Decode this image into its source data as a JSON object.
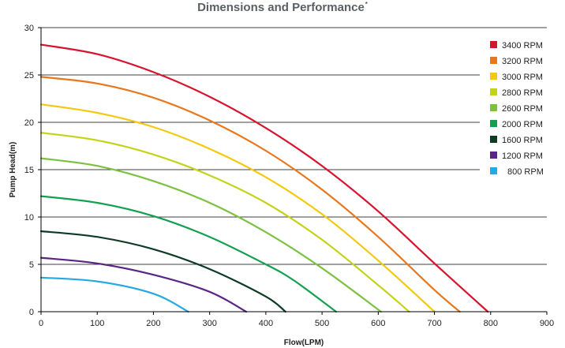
{
  "chart_data": {
    "type": "line",
    "title": "Dimensions and Performance",
    "title_mark": "*",
    "xlabel": "Flow(LPM)",
    "ylabel": "Pump Head(m)",
    "xlim": [
      0,
      900
    ],
    "ylim": [
      0,
      30
    ],
    "x_ticks": [
      0,
      100,
      200,
      300,
      400,
      500,
      600,
      700,
      800,
      900
    ],
    "y_ticks": [
      0,
      5,
      10,
      15,
      20,
      25,
      30
    ],
    "grid": "horizontal",
    "legend_position": "right",
    "series": [
      {
        "name": "3400 RPM",
        "color": "#d7132d",
        "x": [
          0,
          100,
          200,
          300,
          400,
          500,
          600,
          700,
          795
        ],
        "y": [
          28.2,
          27.2,
          25.3,
          22.7,
          19.4,
          15.4,
          10.6,
          5.1,
          0
        ]
      },
      {
        "name": "3200 RPM",
        "color": "#e8771e",
        "x": [
          0,
          100,
          200,
          300,
          400,
          500,
          600,
          700,
          745
        ],
        "y": [
          24.8,
          24.1,
          22.6,
          20.2,
          17.0,
          12.9,
          7.9,
          2.3,
          0
        ]
      },
      {
        "name": "3000 RPM",
        "color": "#f3c90e",
        "x": [
          0,
          100,
          200,
          300,
          400,
          500,
          600,
          700
        ],
        "y": [
          21.9,
          21.0,
          19.5,
          17.2,
          14.2,
          10.3,
          5.4,
          0
        ]
      },
      {
        "name": "2800 RPM",
        "color": "#c3d31a",
        "x": [
          0,
          100,
          200,
          300,
          400,
          500,
          600,
          655
        ],
        "y": [
          18.9,
          18.1,
          16.6,
          14.4,
          11.5,
          7.6,
          2.8,
          0
        ]
      },
      {
        "name": "2600 RPM",
        "color": "#7cc142",
        "x": [
          0,
          100,
          200,
          300,
          400,
          500,
          605
        ],
        "y": [
          16.2,
          15.4,
          13.8,
          11.5,
          8.4,
          4.6,
          0
        ]
      },
      {
        "name": "2000 RPM",
        "color": "#13a050",
        "x": [
          0,
          100,
          200,
          300,
          400,
          450,
          525
        ],
        "y": [
          12.2,
          11.5,
          10.1,
          7.9,
          5.0,
          3.3,
          0
        ]
      },
      {
        "name": "1600 RPM",
        "color": "#0d3b26",
        "x": [
          0,
          100,
          200,
          300,
          400,
          435
        ],
        "y": [
          8.5,
          7.9,
          6.6,
          4.5,
          1.6,
          0
        ]
      },
      {
        "name": "1200 RPM",
        "color": "#5a2585",
        "x": [
          0,
          100,
          200,
          300,
          365
        ],
        "y": [
          5.7,
          5.1,
          3.9,
          2.1,
          0
        ]
      },
      {
        "name": "800 RPM",
        "color": "#25a9e0",
        "x": [
          0,
          100,
          200,
          262
        ],
        "y": [
          3.6,
          3.2,
          1.9,
          0
        ]
      }
    ]
  }
}
